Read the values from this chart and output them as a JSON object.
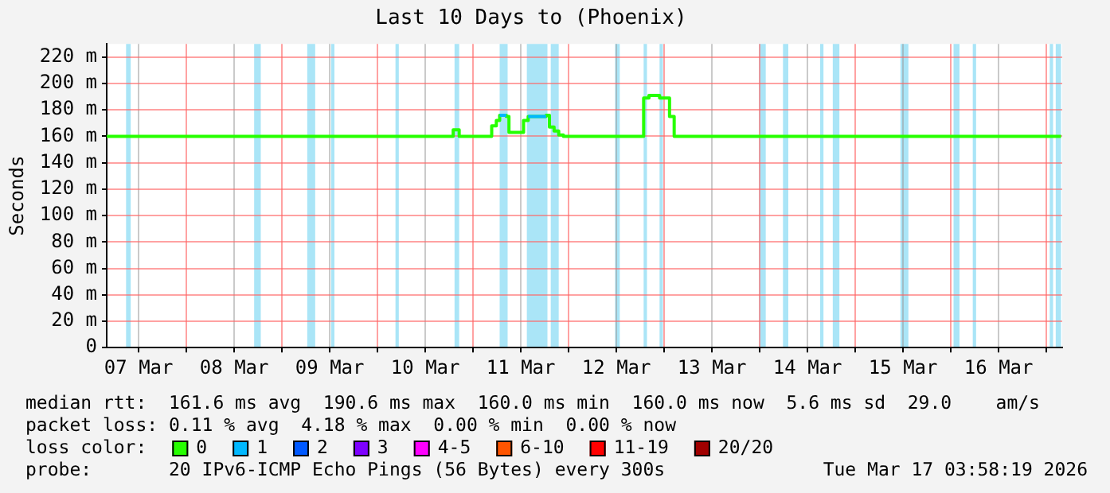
{
  "chart_data": {
    "type": "step",
    "title": "Last 10 Days to (Phoenix)",
    "ylabel": "Seconds",
    "legend_title": "loss color:",
    "legend": "bottom",
    "grid": true,
    "marker": "none",
    "line_style": "solid",
    "xlim": [
      "2026-03-07T03:58",
      "2026-03-17T03:58"
    ],
    "xticks": [
      {
        "value": "2026-03-07T12:00",
        "label": "07 Mar"
      },
      {
        "value": "2026-03-08T00:00",
        "label": null
      },
      {
        "value": "2026-03-08T12:00",
        "label": "08 Mar"
      },
      {
        "value": "2026-03-09T00:00",
        "label": null
      },
      {
        "value": "2026-03-09T12:00",
        "label": "09 Mar"
      },
      {
        "value": "2026-03-10T00:00",
        "label": null
      },
      {
        "value": "2026-03-10T12:00",
        "label": "10 Mar"
      },
      {
        "value": "2026-03-11T00:00",
        "label": null
      },
      {
        "value": "2026-03-11T12:00",
        "label": "11 Mar"
      },
      {
        "value": "2026-03-12T00:00",
        "label": null
      },
      {
        "value": "2026-03-12T12:00",
        "label": "12 Mar"
      },
      {
        "value": "2026-03-13T00:00",
        "label": null
      },
      {
        "value": "2026-03-13T12:00",
        "label": "13 Mar"
      },
      {
        "value": "2026-03-14T00:00",
        "label": null
      },
      {
        "value": "2026-03-14T12:00",
        "label": "14 Mar"
      },
      {
        "value": "2026-03-15T00:00",
        "label": null
      },
      {
        "value": "2026-03-15T12:00",
        "label": "15 Mar"
      },
      {
        "value": "2026-03-16T00:00",
        "label": null
      },
      {
        "value": "2026-03-16T12:00",
        "label": "16 Mar"
      },
      {
        "value": "2026-03-17T00:00",
        "label": null
      }
    ],
    "ylim": [
      0,
      230
    ],
    "yticks": [
      0,
      {
        "value": 20,
        "label": "20 m"
      },
      {
        "value": 40,
        "label": "40 m"
      },
      {
        "value": 60,
        "label": "60 m"
      },
      {
        "value": 80,
        "label": "80 m"
      },
      {
        "value": 100,
        "label": "100 m"
      },
      {
        "value": 120,
        "label": "120 m"
      },
      {
        "value": 140,
        "label": "140 m"
      },
      {
        "value": 160,
        "label": "160 m"
      },
      {
        "value": 180,
        "label": "180 m"
      },
      {
        "value": 200,
        "label": "200 m"
      },
      {
        "value": 220,
        "label": "220 m"
      }
    ],
    "series": [
      {
        "name": "0",
        "color": "#26ff00",
        "x": [
          "2026-03-07T03:58",
          "2026-03-10T19:00",
          "2026-03-10T20:30",
          "2026-03-11T04:40",
          "2026-03-11T05:50",
          "2026-03-11T06:40",
          "2026-03-11T08:20",
          "2026-03-11T09:00",
          "2026-03-11T12:40",
          "2026-03-11T13:50",
          "2026-03-11T18:20",
          "2026-03-11T19:10",
          "2026-03-11T20:20",
          "2026-03-11T21:30",
          "2026-03-11T22:40",
          "2026-03-12T18:50",
          "2026-03-12T20:10",
          "2026-03-12T22:50",
          "2026-03-13T01:20",
          "2026-03-13T02:30",
          "2026-03-17T03:40"
        ],
        "values": [
          160,
          165,
          160,
          168,
          172,
          176,
          175,
          163,
          172,
          175,
          176,
          167,
          164,
          161,
          160,
          189,
          191,
          189,
          175,
          160,
          160
        ]
      },
      {
        "name": "1",
        "color": "#00b8ff",
        "x": [
          "2026-03-11T06:40",
          "2026-03-11T08:20",
          "2026-03-11T08:30",
          "2026-03-11T13:50",
          "2026-03-11T18:20"
        ],
        "values": [
          176,
          176,
          null,
          175,
          175
        ]
      },
      {
        "name": "2",
        "color": "#0059ff"
      },
      {
        "name": "3",
        "color": "#7e00ff"
      },
      {
        "name": "4-5",
        "color": "#ff00ff"
      },
      {
        "name": "6-10",
        "color": "#ff5500"
      },
      {
        "name": "11-19",
        "color": "#ff0000"
      },
      {
        "name": "20/20",
        "color": "#a10000"
      }
    ],
    "bands": [
      {
        "axis": "x",
        "from": "2026-03-07T08:50",
        "to": "2026-03-07T10:00",
        "color": "#aae5f7"
      },
      {
        "axis": "x",
        "from": "2026-03-08T17:00",
        "to": "2026-03-08T18:40",
        "color": "#aae5f7"
      },
      {
        "axis": "x",
        "from": "2026-03-09T06:20",
        "to": "2026-03-09T08:20",
        "color": "#aae5f7"
      },
      {
        "axis": "x",
        "from": "2026-03-09T12:20",
        "to": "2026-03-09T13:10",
        "color": "#aae5f7"
      },
      {
        "axis": "x",
        "from": "2026-03-10T04:30",
        "to": "2026-03-10T05:20",
        "color": "#aae5f7"
      },
      {
        "axis": "x",
        "from": "2026-03-10T19:20",
        "to": "2026-03-10T20:30",
        "color": "#aae5f7"
      },
      {
        "axis": "x",
        "from": "2026-03-11T06:40",
        "to": "2026-03-11T08:40",
        "color": "#aae5f7"
      },
      {
        "axis": "x",
        "from": "2026-03-11T13:30",
        "to": "2026-03-11T18:40",
        "color": "#aae5f7"
      },
      {
        "axis": "x",
        "from": "2026-03-11T19:30",
        "to": "2026-03-11T21:30",
        "color": "#aae5f7"
      },
      {
        "axis": "x",
        "from": "2026-03-12T11:40",
        "to": "2026-03-12T12:50",
        "color": "#aae5f7"
      },
      {
        "axis": "x",
        "from": "2026-03-12T18:50",
        "to": "2026-03-12T19:40",
        "color": "#aae5f7"
      },
      {
        "axis": "x",
        "from": "2026-03-12T22:50",
        "to": "2026-03-12T23:40",
        "color": "#aae5f7"
      },
      {
        "axis": "x",
        "from": "2026-03-13T23:50",
        "to": "2026-03-14T01:30",
        "color": "#aae5f7"
      },
      {
        "axis": "x",
        "from": "2026-03-14T05:50",
        "to": "2026-03-14T07:10",
        "color": "#aae5f7"
      },
      {
        "axis": "x",
        "from": "2026-03-14T15:10",
        "to": "2026-03-14T16:00",
        "color": "#aae5f7"
      },
      {
        "axis": "x",
        "from": "2026-03-14T18:20",
        "to": "2026-03-14T20:00",
        "color": "#aae5f7"
      },
      {
        "axis": "x",
        "from": "2026-03-15T11:20",
        "to": "2026-03-15T13:20",
        "color": "#aae5f7"
      },
      {
        "axis": "x",
        "from": "2026-03-16T00:40",
        "to": "2026-03-16T02:10",
        "color": "#aae5f7"
      },
      {
        "axis": "x",
        "from": "2026-03-16T05:30",
        "to": "2026-03-16T06:20",
        "color": "#aae5f7"
      },
      {
        "axis": "x",
        "from": "2026-03-17T00:50",
        "to": "2026-03-17T01:40",
        "color": "#aae5f7"
      },
      {
        "axis": "x",
        "from": "2026-03-17T02:20",
        "to": "2026-03-17T03:40",
        "color": "#aae5f7"
      }
    ],
    "annotations": [
      "median rtt:  161.6 ms avg  190.6 ms max  160.0 ms min  160.0 ms now  5.6 ms sd  29.0    am/s",
      "packet loss: 0.11 % avg  4.18 % max  0.00 % min  0.00 % now",
      "probe:       20 IPv6-ICMP Echo Pings (56 Bytes) every 300s",
      "Tue Mar 17 03:58:19 2026"
    ]
  }
}
